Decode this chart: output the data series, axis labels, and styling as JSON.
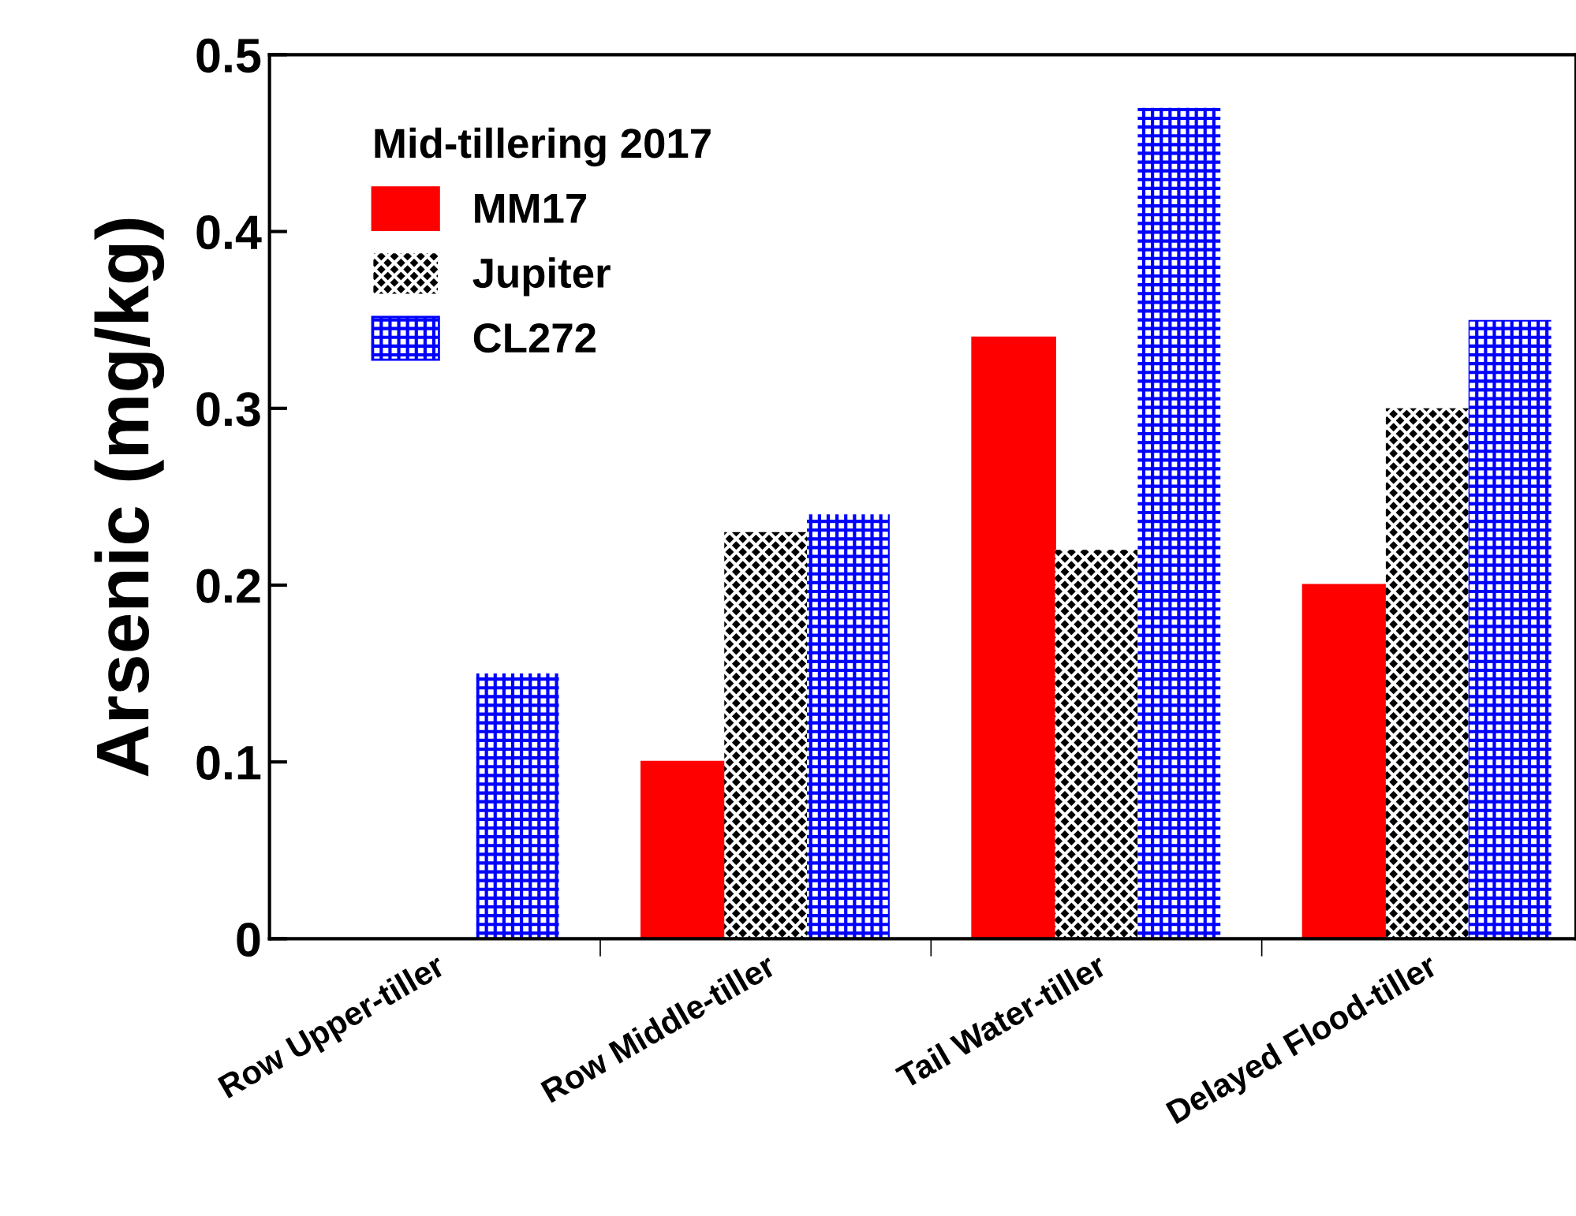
{
  "chart_data": {
    "type": "bar",
    "ylabel": "Arsenic (mg/kg)",
    "legend_title": "Mid-tillering 2017",
    "categories": [
      "Row Upper-tiller",
      "Row Middle-tiller",
      "Tail Water-tiller",
      "Delayed Flood-tiller"
    ],
    "series": [
      {
        "name": "MM17",
        "color": "#ff0000",
        "values": [
          0,
          0.1,
          0.34,
          0.2
        ]
      },
      {
        "name": "Jupiter",
        "color": "#000000",
        "values": [
          0,
          0.23,
          0.22,
          0.3
        ]
      },
      {
        "name": "CL272",
        "color": "#0000ff",
        "values": [
          0.15,
          0.24,
          0.47,
          0.35
        ]
      }
    ],
    "ylim": [
      0,
      0.5
    ],
    "yticks": [
      0,
      0.1,
      0.2,
      0.3,
      0.4,
      0.5
    ],
    "grid": false,
    "legend": "top left"
  }
}
